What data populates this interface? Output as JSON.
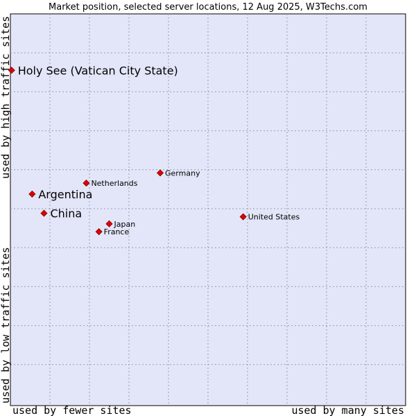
{
  "chart_data": {
    "type": "scatter",
    "title": "Market position, selected server locations, 12 Aug 2025, W3Techs.com",
    "xlabel_left": "used by fewer sites",
    "xlabel_right": "used by many sites",
    "ylabel_top": "used by high traffic sites",
    "ylabel_bottom": "used by low traffic sites",
    "xlim": [
      0,
      100
    ],
    "ylim": [
      0,
      100
    ],
    "grid": true,
    "colors": {
      "plot_background": "#e3e6f8",
      "marker": "#e00000",
      "marker_edge": "#800000"
    },
    "points": [
      {
        "name": "Holy See (Vatican City State)",
        "x": 0.3,
        "y": 85.6,
        "emphasis": true
      },
      {
        "name": "Germany",
        "x": 37.9,
        "y": 59.4,
        "emphasis": false
      },
      {
        "name": "Netherlands",
        "x": 19.2,
        "y": 56.8,
        "emphasis": false
      },
      {
        "name": "Argentina",
        "x": 5.5,
        "y": 54.0,
        "emphasis": true
      },
      {
        "name": "China",
        "x": 8.5,
        "y": 49.1,
        "emphasis": true
      },
      {
        "name": "United States",
        "x": 58.9,
        "y": 48.2,
        "emphasis": false
      },
      {
        "name": "Japan",
        "x": 25.0,
        "y": 46.4,
        "emphasis": false
      },
      {
        "name": "France",
        "x": 22.4,
        "y": 44.4,
        "emphasis": false
      }
    ]
  }
}
